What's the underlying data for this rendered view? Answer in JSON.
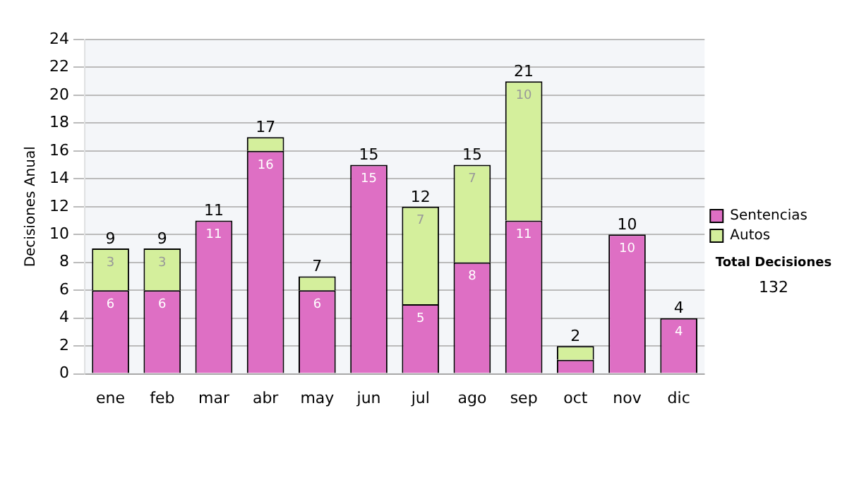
{
  "chart_data": {
    "type": "bar",
    "stacked": true,
    "ylabel": "Decisiones Anual",
    "categories": [
      "ene",
      "feb",
      "mar",
      "abr",
      "may",
      "jun",
      "jul",
      "ago",
      "sep",
      "oct",
      "nov",
      "dic"
    ],
    "series": [
      {
        "name": "Sentencias",
        "color": "#de6fc4",
        "values": [
          6,
          6,
          11,
          16,
          6,
          15,
          5,
          8,
          11,
          1,
          10,
          4
        ],
        "value_labels": [
          "6",
          "6",
          "11",
          "16",
          "6",
          "15",
          "5",
          "8",
          "11",
          null,
          "10",
          "4"
        ]
      },
      {
        "name": "Autos",
        "color": "#d4ef9c",
        "values": [
          3,
          3,
          0,
          1,
          1,
          0,
          7,
          7,
          10,
          1,
          0,
          0
        ],
        "value_labels": [
          "3",
          "3",
          null,
          null,
          null,
          null,
          "7",
          "7",
          "10",
          null,
          null,
          null
        ]
      }
    ],
    "totals": [
      "9",
      "9",
      "11",
      "17",
      "7",
      "15",
      "12",
      "15",
      "21",
      "2",
      "10",
      "4"
    ],
    "ylim": [
      0,
      24
    ],
    "yticks": [
      0,
      2,
      4,
      6,
      8,
      10,
      12,
      14,
      16,
      18,
      20,
      22,
      24
    ],
    "grid": "y",
    "legend": "right",
    "annotations": [
      "Total Decisiones",
      "132"
    ]
  }
}
